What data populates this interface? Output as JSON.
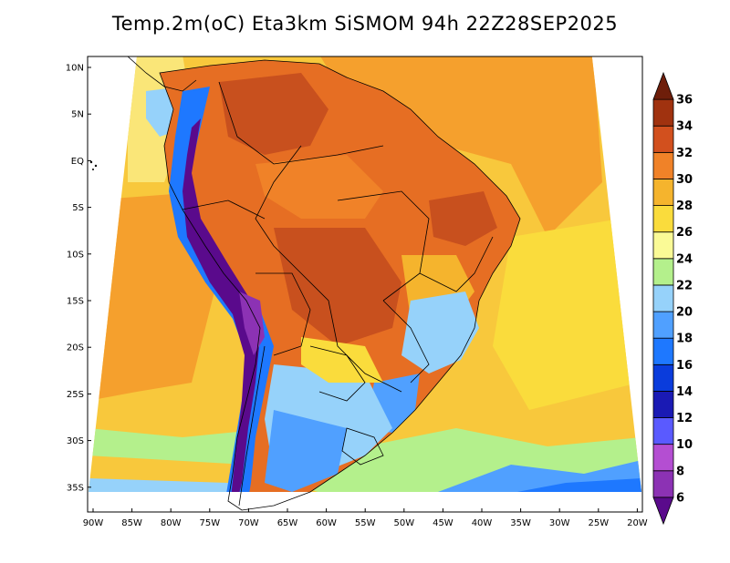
{
  "title": "Temp.2m(oC) Eta3km SiSMOM 94h 22Z28SEP2025",
  "lat_ticks": [
    "10N",
    "5N",
    "EQ",
    "5S",
    "10S",
    "15S",
    "20S",
    "25S",
    "30S",
    "35S"
  ],
  "lon_ticks": [
    "90W",
    "85W",
    "80W",
    "75W",
    "70W",
    "65W",
    "60W",
    "55W",
    "50W",
    "45W",
    "40W",
    "35W",
    "30W",
    "25W",
    "20W"
  ],
  "colorbar": {
    "labels": [
      "6",
      "8",
      "10",
      "12",
      "14",
      "16",
      "18",
      "20",
      "22",
      "24",
      "26",
      "28",
      "30",
      "32",
      "34",
      "36"
    ],
    "colors": [
      "#5a0a8c",
      "#8c32b4",
      "#b44ed2",
      "#5a5aff",
      "#1a1ab4",
      "#0a3cdc",
      "#1e78ff",
      "#50a0ff",
      "#96d2fa",
      "#b4f08c",
      "#fafa96",
      "#fadc3c",
      "#f5b42d",
      "#f08228",
      "#d2501e",
      "#a0320f",
      "#6e1e0a"
    ],
    "colors_note": "17 filled bands bounded by 16 labels; first and last are end triangles"
  },
  "palette": {
    "ocean_warm": "#f5a02d",
    "ocean_mild": "#f8c83c",
    "ocean_cool": "#fae678",
    "ocean_cold": "#b4f08c",
    "land_hot": "#e66e23",
    "land_very_hot": "#c8501e",
    "andes_cold": "#1e78ff",
    "andes_coldest": "#5a0a8c",
    "south_cool": "#50a0ff",
    "south_mild": "#96d2fa"
  }
}
